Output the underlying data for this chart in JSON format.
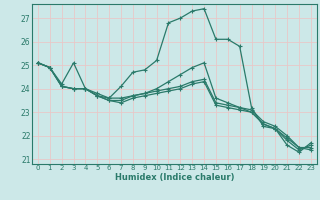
{
  "background_color": "#cce8e8",
  "grid_color": "#e8c8c8",
  "line_color": "#2a7a6a",
  "xlabel": "Humidex (Indice chaleur)",
  "xlim": [
    -0.5,
    23.5
  ],
  "ylim": [
    20.8,
    27.6
  ],
  "yticks": [
    21,
    22,
    23,
    24,
    25,
    26,
    27
  ],
  "xticks": [
    0,
    1,
    2,
    3,
    4,
    5,
    6,
    7,
    8,
    9,
    10,
    11,
    12,
    13,
    14,
    15,
    16,
    17,
    18,
    19,
    20,
    21,
    22,
    23
  ],
  "series1_y": [
    25.1,
    24.9,
    24.2,
    25.1,
    24.0,
    23.7,
    23.6,
    24.1,
    24.7,
    24.8,
    25.2,
    26.8,
    27.0,
    27.3,
    27.4,
    26.1,
    26.1,
    25.8,
    23.2,
    22.4,
    22.3,
    21.6,
    21.3,
    21.7
  ],
  "series2_y": [
    25.1,
    24.9,
    24.1,
    24.0,
    24.0,
    23.8,
    23.6,
    23.6,
    23.7,
    23.8,
    23.9,
    24.0,
    24.1,
    24.3,
    24.4,
    23.4,
    23.3,
    23.2,
    23.1,
    22.6,
    22.4,
    22.0,
    21.5,
    21.5
  ],
  "series3_y": [
    25.1,
    24.9,
    24.1,
    24.0,
    24.0,
    23.7,
    23.5,
    23.5,
    23.7,
    23.8,
    24.0,
    24.3,
    24.6,
    24.9,
    25.1,
    23.6,
    23.4,
    23.2,
    23.0,
    22.5,
    22.3,
    21.8,
    21.4,
    21.6
  ],
  "series4_y": [
    25.1,
    24.9,
    24.1,
    24.0,
    24.0,
    23.7,
    23.5,
    23.4,
    23.6,
    23.7,
    23.8,
    23.9,
    24.0,
    24.2,
    24.3,
    23.3,
    23.2,
    23.1,
    23.0,
    22.5,
    22.3,
    21.9,
    21.5,
    21.4
  ]
}
